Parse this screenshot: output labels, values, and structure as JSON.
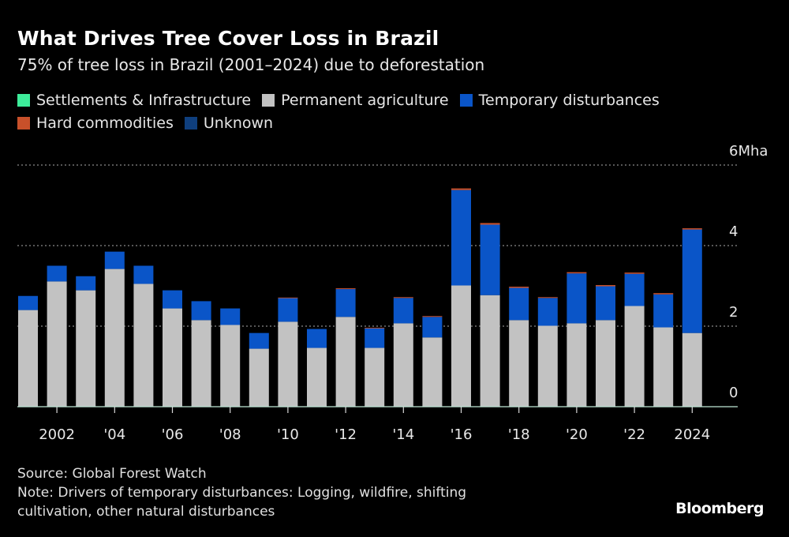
{
  "chart_data": {
    "type": "bar",
    "stacked": true,
    "title": "What Drives Tree Cover Loss in Brazil",
    "subtitle": "75% of tree loss in Brazil (2001–2024) due to deforestation",
    "xlabel": "",
    "ylabel": "",
    "y_unit_label": "6Mha",
    "ylim": [
      0,
      6
    ],
    "yticks": [
      0,
      2,
      4,
      6
    ],
    "ytick_labels": [
      "0",
      "2",
      "4",
      "6Mha"
    ],
    "grid": true,
    "legend_position": "top-left",
    "categories": [
      "2001",
      "2002",
      "2003",
      "2004",
      "2005",
      "2006",
      "2007",
      "2008",
      "2009",
      "2010",
      "2011",
      "2012",
      "2013",
      "2014",
      "2015",
      "2016",
      "2017",
      "2018",
      "2019",
      "2020",
      "2021",
      "2022",
      "2023",
      "2024"
    ],
    "xtick_labels": [
      {
        "category": "2002",
        "label": "2002"
      },
      {
        "category": "2004",
        "label": "'04"
      },
      {
        "category": "2006",
        "label": "'06"
      },
      {
        "category": "2008",
        "label": "'08"
      },
      {
        "category": "2010",
        "label": "'10"
      },
      {
        "category": "2012",
        "label": "'12"
      },
      {
        "category": "2014",
        "label": "'14"
      },
      {
        "category": "2016",
        "label": "'16"
      },
      {
        "category": "2018",
        "label": "'18"
      },
      {
        "category": "2020",
        "label": "'20"
      },
      {
        "category": "2022",
        "label": "'22"
      },
      {
        "category": "2024",
        "label": "2024"
      }
    ],
    "series": [
      {
        "name": "Settlements & Infrastructure",
        "color": "#3dec9a",
        "values": [
          0.01,
          0.01,
          0.01,
          0.01,
          0.01,
          0.01,
          0.01,
          0.01,
          0.01,
          0.01,
          0.01,
          0.01,
          0.01,
          0.01,
          0.01,
          0.01,
          0.01,
          0.01,
          0.01,
          0.01,
          0.01,
          0.01,
          0.01,
          0.01
        ]
      },
      {
        "name": "Permanent agriculture",
        "color": "#c2c2c2",
        "values": [
          2.39,
          3.1,
          2.88,
          3.41,
          3.04,
          2.43,
          2.14,
          2.02,
          1.43,
          2.1,
          1.45,
          2.22,
          1.45,
          2.06,
          1.71,
          3.0,
          2.76,
          2.14,
          2.0,
          2.06,
          2.14,
          2.49,
          1.96,
          1.82
        ]
      },
      {
        "name": "Temporary disturbances",
        "color": "#0a55c8",
        "values": [
          0.35,
          0.39,
          0.35,
          0.43,
          0.45,
          0.45,
          0.47,
          0.41,
          0.39,
          0.59,
          0.47,
          0.69,
          0.49,
          0.63,
          0.51,
          2.37,
          1.75,
          0.8,
          0.69,
          1.24,
          0.84,
          0.8,
          0.82,
          2.57
        ]
      },
      {
        "name": "Hard commodities",
        "color": "#c8502a",
        "values": [
          0.0,
          0.0,
          0.0,
          0.0,
          0.0,
          0.0,
          0.0,
          0.0,
          0.0,
          0.01,
          0.0,
          0.02,
          0.01,
          0.02,
          0.02,
          0.04,
          0.04,
          0.03,
          0.02,
          0.03,
          0.03,
          0.03,
          0.03,
          0.03
        ]
      },
      {
        "name": "Unknown",
        "color": "#0f3f7e",
        "values": [
          0,
          0,
          0,
          0,
          0,
          0,
          0,
          0,
          0,
          0,
          0,
          0,
          0,
          0,
          0,
          0,
          0,
          0,
          0,
          0,
          0,
          0,
          0,
          0
        ]
      }
    ],
    "legend": [
      {
        "name": "Settlements & Infrastructure",
        "color": "#3dec9a"
      },
      {
        "name": "Permanent agriculture",
        "color": "#c2c2c2"
      },
      {
        "name": "Temporary disturbances",
        "color": "#0a55c8"
      },
      {
        "name": "Hard commodities",
        "color": "#c8502a"
      },
      {
        "name": "Unknown",
        "color": "#0f3f7e"
      }
    ]
  },
  "footer": {
    "source": "Source: Global Forest Watch",
    "note_line1": "Note: Drivers of temporary disturbances: Logging, wildfire, shifting",
    "note_line2": "cultivation, other natural disturbances",
    "brand": "Bloomberg"
  }
}
